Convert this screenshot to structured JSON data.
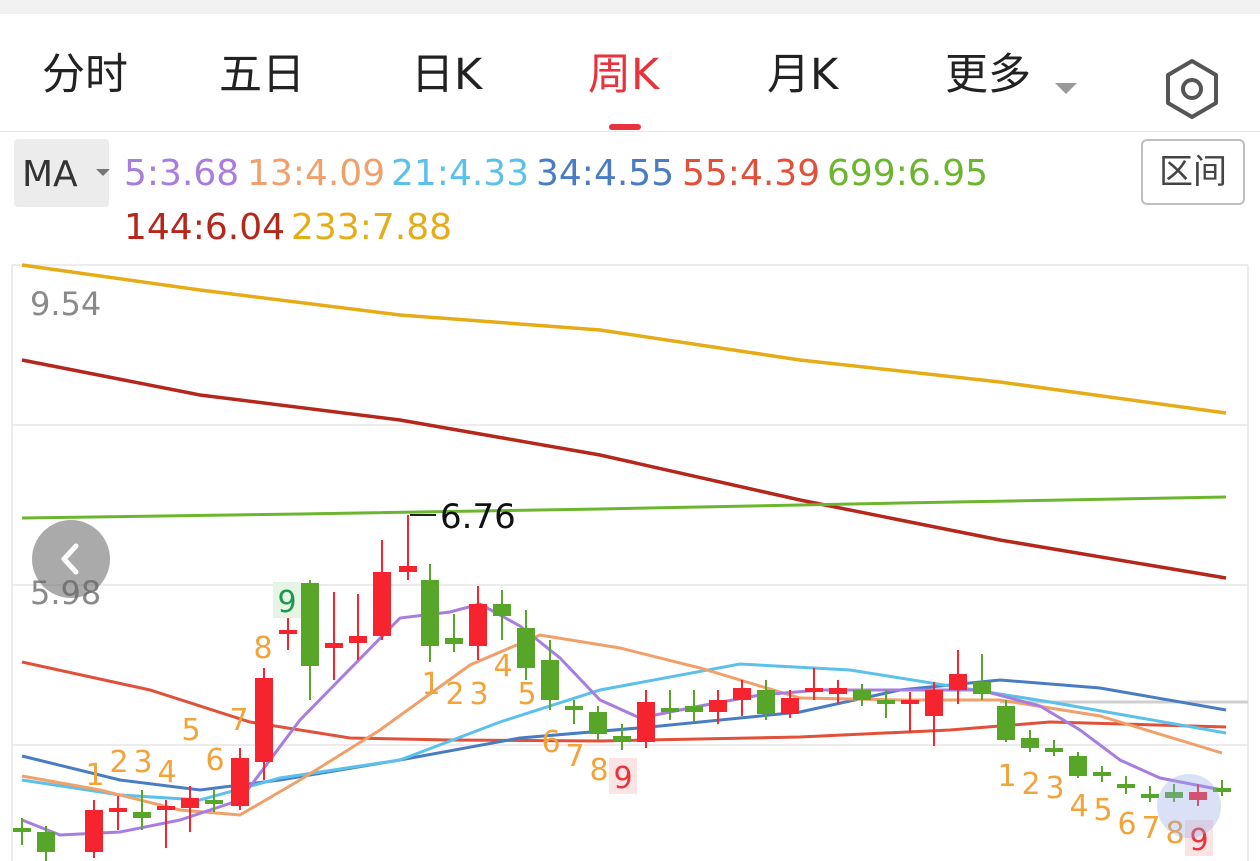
{
  "tabs": [
    {
      "label": "分时"
    },
    {
      "label": "五日"
    },
    {
      "label": "日K"
    },
    {
      "label": "周K",
      "active": true
    },
    {
      "label": "月K"
    },
    {
      "label": "更多"
    }
  ],
  "settings_icon": "hexagon-settings-icon",
  "indicator": {
    "label": "MA"
  },
  "range_button": "区间",
  "ma": [
    {
      "text": "5:3.68",
      "color": "#a77de0"
    },
    {
      "text": "13:4.09",
      "color": "#f0a06a"
    },
    {
      "text": "21:4.33",
      "color": "#5bc0ea"
    },
    {
      "text": "34:4.55",
      "color": "#4a7cc4"
    },
    {
      "text": "55:4.39",
      "color": "#e0503a"
    },
    {
      "text": "699:6.95",
      "color": "#6cb52e"
    },
    {
      "text": "144:6.04",
      "color": "#b5261b"
    },
    {
      "text": "233:7.88",
      "color": "#e6ac16"
    }
  ],
  "chart_data": {
    "type": "candlestick",
    "price_labels": [
      "9.54",
      "5.98"
    ],
    "annotation": "6.76",
    "up_color": "#f5242e",
    "down_color": "#57a62a",
    "sequence_counts": {
      "up_setup": [
        "1",
        "2",
        "3",
        "4",
        "5",
        "6",
        "7",
        "8",
        "9"
      ],
      "down_setup": [
        "1",
        "2",
        "3",
        "4",
        "5",
        "6",
        "7",
        "8",
        "9"
      ]
    }
  }
}
